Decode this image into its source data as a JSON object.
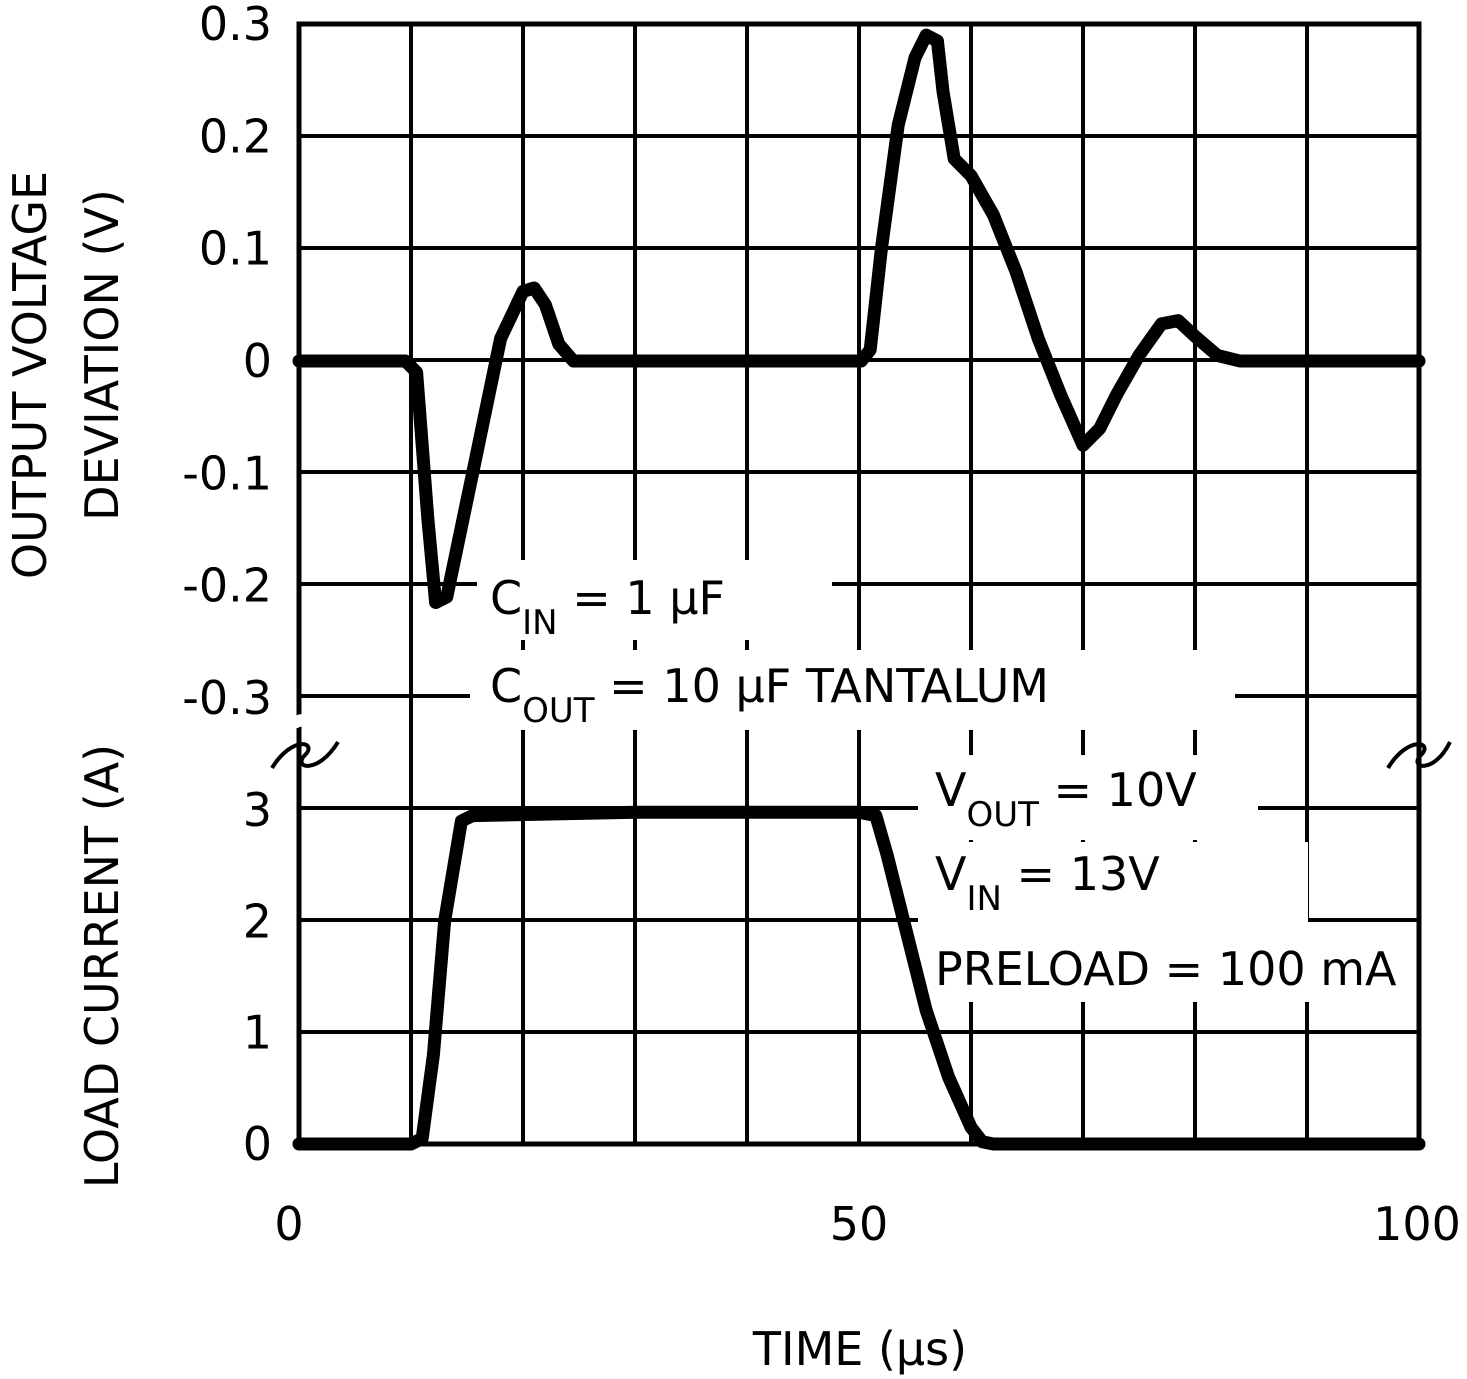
{
  "chart_data": {
    "type": "line",
    "title": "",
    "xlabel": "TIME (µs)",
    "x_ticks": [
      "0",
      "50",
      "100"
    ],
    "x_tick_values": [
      0,
      50,
      100
    ],
    "xlim": [
      0,
      100
    ],
    "grid": true,
    "colors": {
      "line": "#000000",
      "grid": "#000000",
      "background": "#ffffff"
    },
    "upper": {
      "ylabel_line1": "OUTPUT VOLTAGE",
      "ylabel_line2": "DEVIATION (V)",
      "ylim": [
        -0.3,
        0.3
      ],
      "y_ticks": [
        "0.3",
        "0.2",
        "0.1",
        "0",
        "-0.1",
        "-0.2",
        "-0.3"
      ],
      "y_tick_values": [
        0.3,
        0.2,
        0.1,
        0,
        -0.1,
        -0.2,
        -0.3
      ],
      "series": [
        {
          "name": "Output Voltage Deviation",
          "x": [
            0,
            9.5,
            10.5,
            11.5,
            12.2,
            13.2,
            15.5,
            18,
            20,
            21,
            22,
            23.2,
            24.5,
            40,
            50.2,
            51,
            52,
            53.5,
            55,
            56,
            57,
            57.5,
            58.5,
            60,
            62,
            64,
            66,
            68,
            70,
            71.5,
            73,
            75,
            77,
            78.5,
            80,
            82,
            84,
            90,
            100
          ],
          "y": [
            0,
            0,
            -0.01,
            -0.14,
            -0.215,
            -0.21,
            -0.1,
            0.02,
            0.062,
            0.065,
            0.05,
            0.015,
            0,
            0,
            0,
            0.01,
            0.1,
            0.21,
            0.27,
            0.29,
            0.285,
            0.24,
            0.18,
            0.165,
            0.13,
            0.08,
            0.02,
            -0.03,
            -0.075,
            -0.06,
            -0.03,
            0.005,
            0.033,
            0.036,
            0.022,
            0.005,
            0,
            0,
            0
          ]
        }
      ]
    },
    "lower": {
      "ylabel": "LOAD CURRENT (A)",
      "ylim": [
        0,
        3
      ],
      "y_ticks": [
        "3",
        "2",
        "1",
        "0"
      ],
      "y_tick_values": [
        3,
        2,
        1,
        0
      ],
      "series": [
        {
          "name": "Load Current",
          "x": [
            0,
            10,
            11,
            12,
            13,
            14.5,
            15.5,
            30,
            50,
            51.5,
            52.5,
            54,
            56,
            58,
            60,
            61,
            62,
            75,
            100
          ],
          "y": [
            0,
            0,
            0.05,
            0.8,
            2,
            2.9,
            2.95,
            2.98,
            2.98,
            2.95,
            2.6,
            2.0,
            1.2,
            0.6,
            0.15,
            0.02,
            0,
            0,
            0
          ]
        }
      ]
    },
    "annotations": {
      "cin": {
        "label": "C",
        "sub": "IN",
        "rest": " = 1 μF"
      },
      "cout": {
        "label": "C",
        "sub": "OUT",
        "rest": " = 10 μF TANTALUM"
      },
      "vout": {
        "label": "V",
        "sub": "OUT",
        "rest": " = 10V"
      },
      "vin": {
        "label": "V",
        "sub": "IN",
        "rest": " = 13V"
      },
      "preload": {
        "text": "PRELOAD = 100 mA"
      }
    }
  }
}
